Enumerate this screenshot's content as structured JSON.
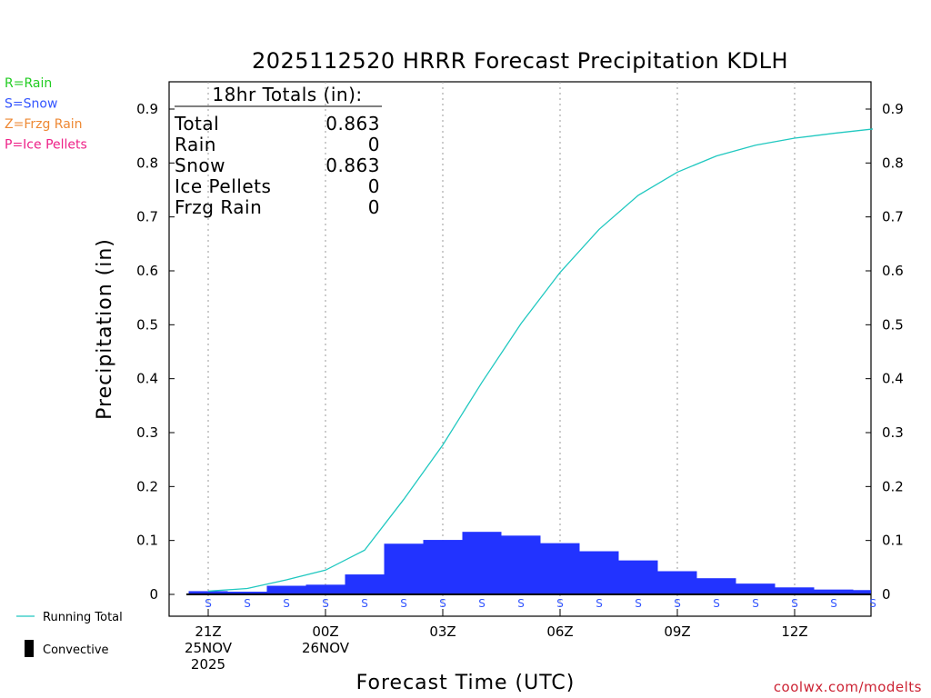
{
  "chart_data": {
    "type": "bar",
    "title": "2025112520 HRRR Forecast Precipitation KDLH",
    "xlabel": "Forecast Time (UTC)",
    "ylabel": "Precipitation (in)",
    "ylim": [
      0,
      0.95
    ],
    "yticks": [
      0,
      0.1,
      0.2,
      0.3,
      0.4,
      0.5,
      0.6,
      0.7,
      0.8,
      0.9
    ],
    "ytick_labels": [
      "0",
      "0.1",
      "0.2",
      "0.3",
      "0.4",
      "0.5",
      "0.6",
      "0.7",
      "0.8",
      "0.9"
    ],
    "xlim_hours": [
      20.0,
      38.0
    ],
    "xticks": [
      {
        "hour": 21,
        "lines": [
          "21Z",
          "25NOV",
          "2025"
        ]
      },
      {
        "hour": 24,
        "lines": [
          "00Z",
          "26NOV"
        ]
      },
      {
        "hour": 27,
        "lines": [
          "03Z"
        ]
      },
      {
        "hour": 30,
        "lines": [
          "06Z"
        ]
      },
      {
        "hour": 33,
        "lines": [
          "09Z"
        ]
      },
      {
        "hour": 36,
        "lines": [
          "12Z"
        ]
      }
    ],
    "grid": "vertical dotted lines at x ticks",
    "series": [
      {
        "name": "Running Total",
        "kind": "line",
        "color": "#20c8c0",
        "hours": [
          21,
          22,
          23,
          24,
          25,
          26,
          27,
          28,
          29,
          30,
          31,
          32,
          33,
          34,
          35,
          36,
          37,
          38
        ],
        "values": [
          0.006,
          0.011,
          0.027,
          0.045,
          0.082,
          0.176,
          0.277,
          0.393,
          0.502,
          0.597,
          0.677,
          0.74,
          0.783,
          0.813,
          0.833,
          0.846,
          0.855,
          0.863
        ]
      },
      {
        "name": "Snow",
        "kind": "bar",
        "color": "#2233ff",
        "hours": [
          21,
          22,
          23,
          24,
          25,
          26,
          27,
          28,
          29,
          30,
          31,
          32,
          33,
          34,
          35,
          36,
          37,
          38
        ],
        "values": [
          0.006,
          0.005,
          0.016,
          0.018,
          0.037,
          0.094,
          0.101,
          0.116,
          0.109,
          0.095,
          0.08,
          0.063,
          0.043,
          0.03,
          0.02,
          0.013,
          0.009,
          0.008
        ]
      },
      {
        "name": "Convective",
        "kind": "bar",
        "color": "#000000",
        "hours": [
          21,
          22,
          23,
          24,
          25,
          26,
          27,
          28,
          29,
          30,
          31,
          32,
          33,
          34,
          35,
          36,
          37,
          38
        ],
        "values": [
          0,
          0,
          0,
          0,
          0,
          0,
          0,
          0,
          0,
          0,
          0,
          0,
          0,
          0,
          0,
          0,
          0,
          0
        ]
      }
    ],
    "ptype_hours": [
      21,
      22,
      23,
      24,
      25,
      26,
      27,
      28,
      29,
      30,
      31,
      32,
      33,
      34,
      35,
      36,
      37,
      38
    ],
    "ptype_symbols": [
      "S",
      "S",
      "S",
      "S",
      "S",
      "S",
      "S",
      "S",
      "S",
      "S",
      "S",
      "S",
      "S",
      "S",
      "S",
      "S",
      "S",
      "S"
    ]
  },
  "totals_box": {
    "header": "18hr Totals (in):",
    "rows": [
      {
        "label": "Total",
        "value": "0.863"
      },
      {
        "label": "Rain",
        "value": "0"
      },
      {
        "label": "Snow",
        "value": "0.863"
      },
      {
        "label": "Ice Pellets",
        "value": "0"
      },
      {
        "label": "Frzg Rain",
        "value": "0"
      }
    ]
  },
  "ptype_legend": [
    {
      "text": "R=Rain",
      "color": "#22cc22"
    },
    {
      "text": "S=Snow",
      "color": "#3355ff"
    },
    {
      "text": "Z=Frzg Rain",
      "color": "#ee8833"
    },
    {
      "text": "P=Ice Pellets",
      "color": "#ee2288"
    }
  ],
  "series_legend": {
    "running_total": "Running Total",
    "convective": "Convective"
  },
  "credit": "coolwx.com/modelts"
}
